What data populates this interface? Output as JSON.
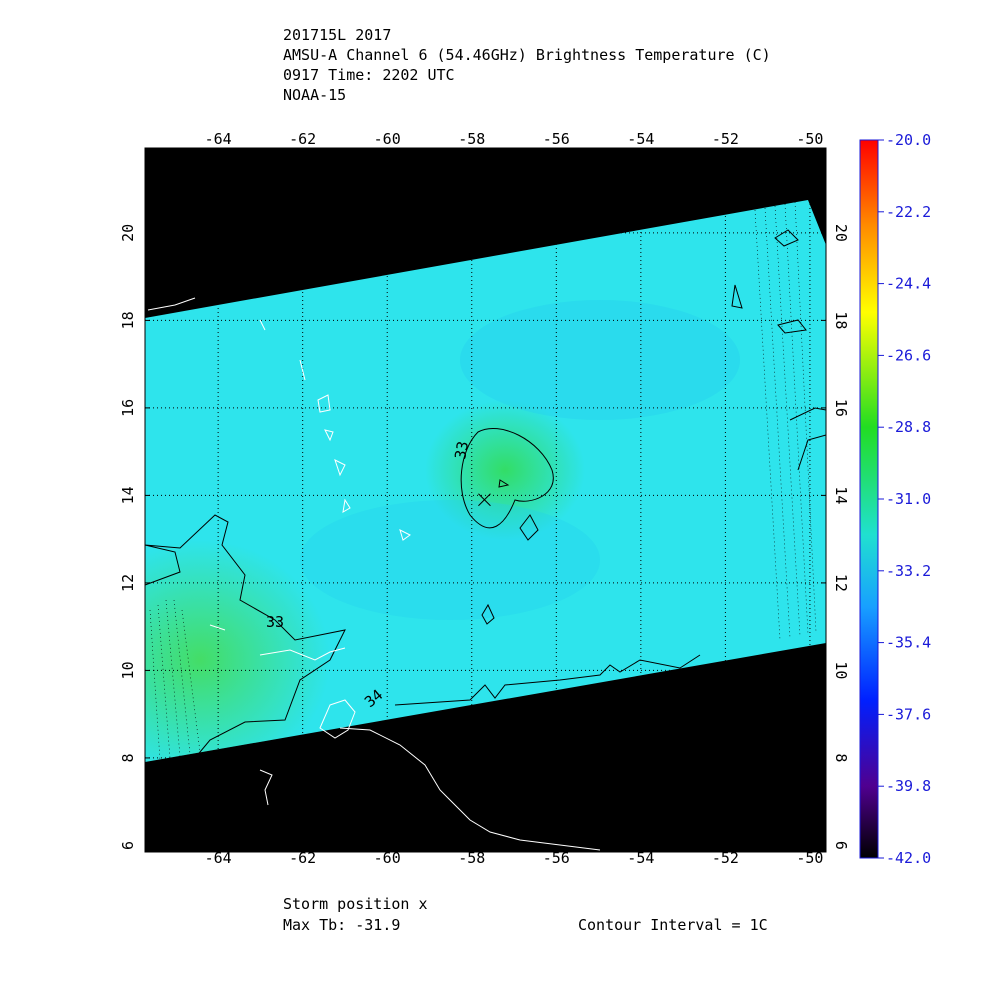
{
  "chart_data": {
    "type": "map",
    "title_lines": [
      "201715L 2017",
      "AMSU-A Channel 6 (54.46GHz) Brightness Temperature (C)",
      "0917 Time: 2202 UTC",
      "NOAA-15"
    ],
    "xlim": [
      -65.73,
      -49.62
    ],
    "ylim": [
      5.85,
      21.94
    ],
    "xticks": [
      -64,
      -62,
      -60,
      -58,
      -56,
      -54,
      -52,
      -50
    ],
    "yticks": [
      6,
      8,
      10,
      12,
      14,
      16,
      18,
      20
    ],
    "grid": true,
    "storm_position": {
      "lon": -57.7,
      "lat": 13.9
    },
    "contour_labels": [
      "33",
      "33",
      "34"
    ],
    "colorbar": {
      "lim": [
        -42,
        -20
      ],
      "ticks": [
        {
          "value": -20,
          "label": "-20.0"
        },
        {
          "value": -22.2,
          "label": "-22.2"
        },
        {
          "value": -24.4,
          "label": "-24.4"
        },
        {
          "value": -26.6,
          "label": "-26.6"
        },
        {
          "value": -28.8,
          "label": "-28.8"
        },
        {
          "value": -31,
          "label": "-31.0"
        },
        {
          "value": -33.2,
          "label": "-33.2"
        },
        {
          "value": -35.4,
          "label": "-35.4"
        },
        {
          "value": -37.6,
          "label": "-37.6"
        },
        {
          "value": -39.8,
          "label": "-39.8"
        },
        {
          "value": -42,
          "label": "-42.0"
        }
      ]
    },
    "footer": {
      "storm_label": "Storm position x",
      "max_tb": "Max Tb: -31.9",
      "contour_interval": "Contour Interval = 1C"
    }
  }
}
